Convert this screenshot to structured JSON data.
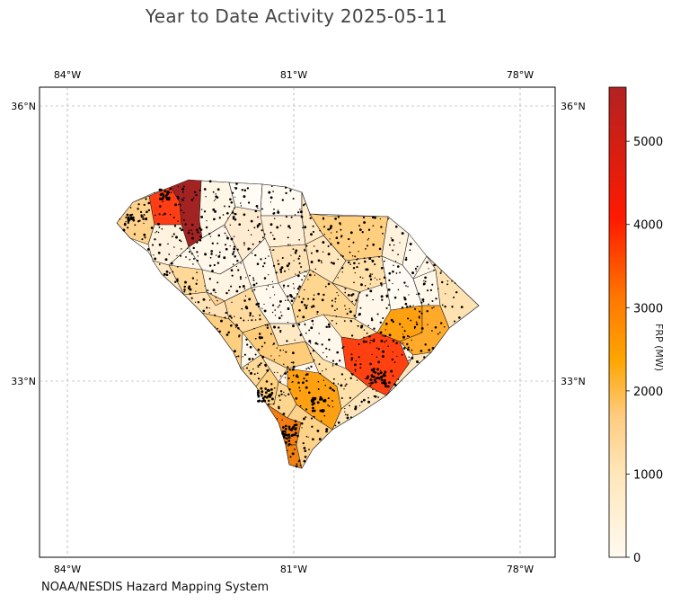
{
  "title": "Year to Date Activity 2025-05-11",
  "credit": "NOAA/NESDIS Hazard Mapping System",
  "colorbar": {
    "label": "FRP (MW)",
    "ticks": [
      "0",
      "1000",
      "2000",
      "3000",
      "4000",
      "5000"
    ],
    "tick_values": [
      0,
      1000,
      2000,
      3000,
      4000,
      5000
    ],
    "max": 5650,
    "stops": [
      "#fffaf0",
      "#ffe6b8",
      "#ffcc80",
      "#ffa500",
      "#ff7800",
      "#ff1a00",
      "#b22222"
    ]
  },
  "axes": {
    "lon_labels": [
      "84°W",
      "81°W",
      "78°W"
    ],
    "lat_labels": [
      "36°N",
      "33°N"
    ],
    "grid": "dashed gray"
  },
  "map": {
    "region": "South Carolina counties",
    "high_county_color": "#a32222",
    "hot_colors": [
      "#ff3d14",
      "#ff4010",
      "#f47c10",
      "#ffa010"
    ]
  }
}
